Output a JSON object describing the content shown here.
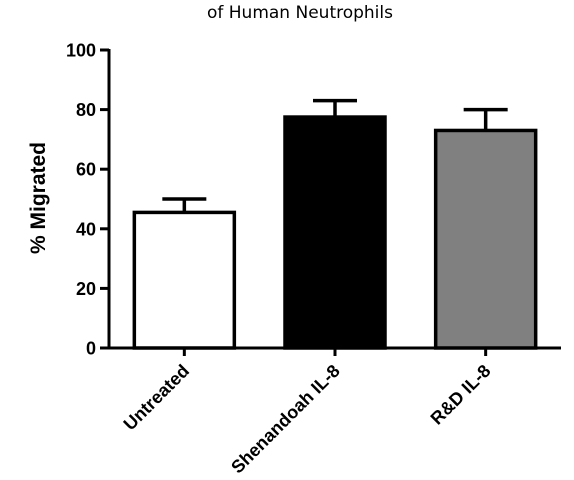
{
  "chart_data": {
    "type": "bar",
    "title": "of Human Neutrophils",
    "xlabel": "",
    "ylabel": "% Migrated",
    "ylim": [
      0,
      100
    ],
    "yticks": [
      0,
      20,
      40,
      60,
      80,
      100
    ],
    "categories": [
      "Untreated",
      "Shenandoah IL-8",
      "R&D IL-8"
    ],
    "values": [
      45.5,
      77.5,
      73
    ],
    "error_upper": [
      4.5,
      5.5,
      7
    ],
    "bar_colors": [
      "#ffffff",
      "#000000",
      "#808080"
    ],
    "bar_edge_color": "#000000",
    "grid": false,
    "legend": "none"
  }
}
